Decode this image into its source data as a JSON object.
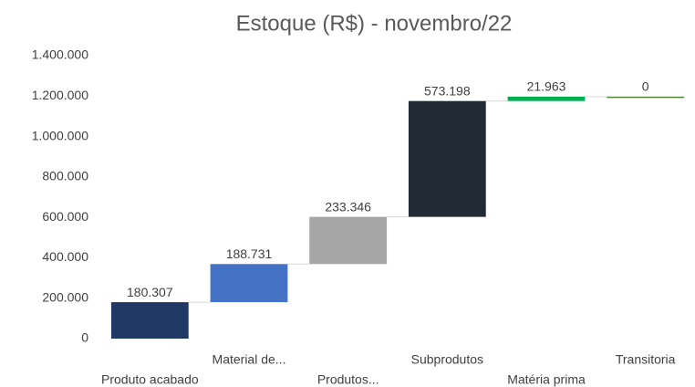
{
  "chart_data": {
    "type": "waterfall",
    "title": "Estoque (R$) - novembro/22",
    "categories": [
      "Produto acabado",
      "Material de...",
      "Produtos...",
      "Subprodutos",
      "Matéria prima",
      "Transitoria"
    ],
    "values": [
      180307,
      188731,
      233346,
      573198,
      21963,
      0
    ],
    "value_labels": [
      "180.307",
      "188.731",
      "233.346",
      "573.198",
      "21.963",
      "0"
    ],
    "colors": [
      "#1f3864",
      "#4472c4",
      "#a5a5a5",
      "#222a35",
      "#00b050",
      "#548235"
    ],
    "ylim": [
      0,
      1400000
    ],
    "yticks": [
      0,
      {
        "value": 200000,
        "label": "200.000"
      },
      {
        "value": 400000,
        "label": "400.000"
      },
      {
        "value": 600000,
        "label": "600.000"
      },
      {
        "value": 800000,
        "label": "800.000"
      },
      {
        "value": 1000000,
        "label": "1.000.000"
      },
      {
        "value": 1200000,
        "label": "1.200.000"
      },
      {
        "value": 1400000,
        "label": "1.400.000"
      }
    ],
    "grid": false
  }
}
